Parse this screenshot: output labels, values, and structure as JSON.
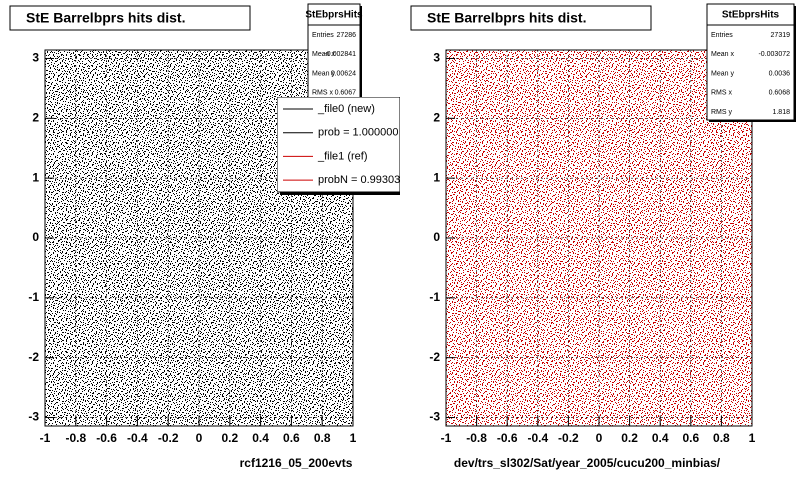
{
  "chart_data": [
    {
      "type": "scatter",
      "title": "StE Barrelbprs hits dist.",
      "x_label": "rcf1216_05_200evts",
      "color": "#000000",
      "xlim": [
        -1,
        1
      ],
      "ylim": [
        -3.1416,
        3.1416
      ],
      "xticks": [
        -1,
        -0.8,
        -0.6,
        -0.4,
        -0.2,
        0,
        0.2,
        0.4,
        0.6,
        0.8,
        1
      ],
      "yticks": [
        -3,
        -2,
        -1,
        0,
        1,
        2,
        3
      ],
      "grid": true,
      "stats": {
        "title": "StEbprsHits",
        "rows": [
          [
            "Entries",
            27286
          ],
          [
            "Mean x",
            -0.002841
          ],
          [
            "Mean y",
            0.00624
          ],
          [
            "RMS x",
            0.6067
          ]
        ]
      },
      "legend": [
        {
          "name": "_file0 (new)",
          "color": "#000000"
        },
        {
          "name": "prob = 1.000000",
          "color": "#000000"
        },
        {
          "name": "_file1 (ref)",
          "color": "#cc0000"
        },
        {
          "name": "probN = 0.99303",
          "color": "#cc0000"
        }
      ]
    },
    {
      "type": "scatter",
      "title": "StE Barrelbprs hits dist.",
      "x_label": "dev/trs_sl302/Sat/year_2005/cucu200_minbias/",
      "color": "#cc0000",
      "xlim": [
        -1,
        1
      ],
      "ylim": [
        -3.1416,
        3.1416
      ],
      "xticks": [
        -1,
        -0.8,
        -0.6,
        -0.4,
        -0.2,
        0,
        0.2,
        0.4,
        0.6,
        0.8,
        1
      ],
      "yticks": [
        -3,
        -2,
        -1,
        0,
        1,
        2,
        3
      ],
      "grid": true,
      "stats": {
        "title": "StEbprsHits",
        "rows": [
          [
            "Entries",
            27319
          ],
          [
            "Mean x",
            -0.003072
          ],
          [
            "Mean y",
            0.0036
          ],
          [
            "RMS x",
            0.6068
          ],
          [
            "RMS y",
            1.818
          ]
        ]
      }
    }
  ]
}
